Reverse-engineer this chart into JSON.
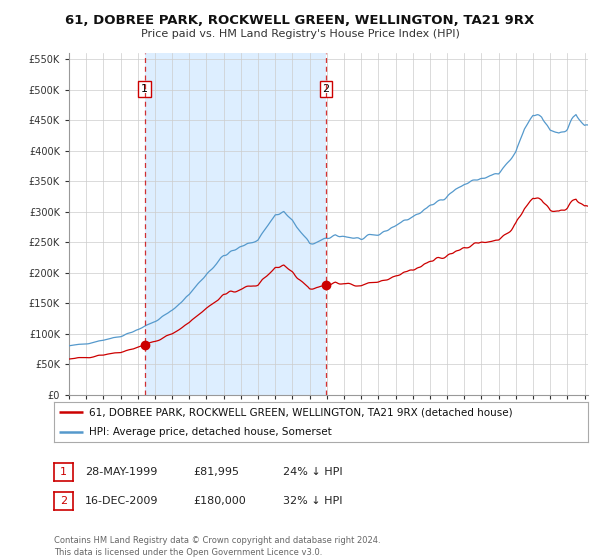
{
  "title": "61, DOBREE PARK, ROCKWELL GREEN, WELLINGTON, TA21 9RX",
  "subtitle": "Price paid vs. HM Land Registry's House Price Index (HPI)",
  "legend_line1": "61, DOBREE PARK, ROCKWELL GREEN, WELLINGTON, TA21 9RX (detached house)",
  "legend_line2": "HPI: Average price, detached house, Somerset",
  "sale1_label": "1",
  "sale1_date": "28-MAY-1999",
  "sale1_price": "£81,995",
  "sale1_hpi": "24% ↓ HPI",
  "sale1_year": 1999.4,
  "sale1_value": 81995,
  "sale2_label": "2",
  "sale2_date": "16-DEC-2009",
  "sale2_price": "£180,000",
  "sale2_hpi": "32% ↓ HPI",
  "sale2_year": 2009.96,
  "sale2_value": 180000,
  "footer": "Contains HM Land Registry data © Crown copyright and database right 2024.\nThis data is licensed under the Open Government Licence v3.0.",
  "price_color": "#cc0000",
  "hpi_color": "#5599cc",
  "shade_color": "#ddeeff",
  "ylim_min": 0,
  "ylim_max": 560000,
  "yticks": [
    0,
    50000,
    100000,
    150000,
    200000,
    250000,
    300000,
    350000,
    400000,
    450000,
    500000,
    550000
  ],
  "background_color": "#ffffff",
  "grid_color": "#cccccc"
}
